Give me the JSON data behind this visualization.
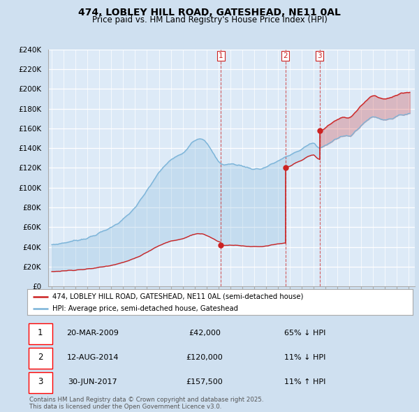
{
  "title": "474, LOBLEY HILL ROAD, GATESHEAD, NE11 0AL",
  "subtitle": "Price paid vs. HM Land Registry's House Price Index (HPI)",
  "bg_color": "#cfe0f0",
  "plot_bg_color": "#ddeaf7",
  "hpi_color": "#7ab3d8",
  "price_color": "#cc2222",
  "ylim": [
    0,
    240000
  ],
  "yticks": [
    0,
    20000,
    40000,
    60000,
    80000,
    100000,
    120000,
    140000,
    160000,
    180000,
    200000,
    220000,
    240000
  ],
  "ytick_labels": [
    "£0",
    "£20K",
    "£40K",
    "£60K",
    "£80K",
    "£100K",
    "£120K",
    "£140K",
    "£160K",
    "£180K",
    "£200K",
    "£220K",
    "£240K"
  ],
  "sales": [
    {
      "year": 2009.22,
      "price": 42000,
      "label": "1"
    },
    {
      "year": 2014.62,
      "price": 120000,
      "label": "2"
    },
    {
      "year": 2017.5,
      "price": 157500,
      "label": "3"
    }
  ],
  "legend_label_red": "474, LOBLEY HILL ROAD, GATESHEAD, NE11 0AL (semi-detached house)",
  "legend_label_blue": "HPI: Average price, semi-detached house, Gateshead",
  "table": [
    [
      "1",
      "20-MAR-2009",
      "£42,000",
      "65% ↓ HPI"
    ],
    [
      "2",
      "12-AUG-2014",
      "£120,000",
      "11% ↓ HPI"
    ],
    [
      "3",
      "30-JUN-2017",
      "£157,500",
      "11% ↑ HPI"
    ]
  ],
  "footnote": "Contains HM Land Registry data © Crown copyright and database right 2025.\nThis data is licensed under the Open Government Licence v3.0."
}
